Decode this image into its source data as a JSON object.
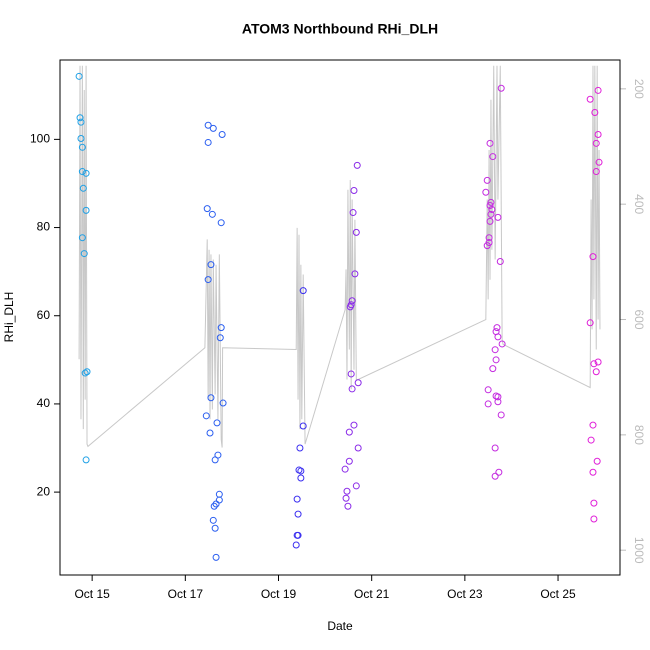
{
  "chart_data": {
    "type": "scatter",
    "title": "ATOM3 Northbound RHi_DLH",
    "x_label": "Date",
    "y_label": "RHi_DLH",
    "xlim": [
      14.31,
      26.33
    ],
    "xticks": [
      {
        "value": 15,
        "label": "Oct 15"
      },
      {
        "value": 17,
        "label": "Oct 17"
      },
      {
        "value": 19,
        "label": "Oct 19"
      },
      {
        "value": 21,
        "label": "Oct 21"
      },
      {
        "value": 23,
        "label": "Oct 23"
      },
      {
        "value": 25,
        "label": "Oct 25"
      }
    ],
    "ylim": [
      1.2,
      118
    ],
    "yticks": [
      20,
      40,
      60,
      80,
      100
    ],
    "y2lim": [
      1043,
      150
    ],
    "y2ticks": [
      200,
      400,
      600,
      800,
      1000
    ],
    "grid": false,
    "series": [
      {
        "color": "#1ea0e6",
        "x": [
          14.72,
          14.74,
          14.76,
          14.76,
          14.79,
          14.79,
          14.87,
          14.81,
          14.87,
          14.79,
          14.83,
          14.85,
          14.89,
          14.87
        ],
        "values": [
          114.3,
          104.9,
          103.9,
          100.2,
          98.2,
          92.7,
          92.3,
          88.9,
          83.9,
          77.7,
          74.1,
          47.0,
          47.3,
          27.3
        ]
      },
      {
        "color": "#2a5ef0",
        "x": [
          17.49,
          17.6,
          17.79,
          17.49,
          17.47,
          17.58,
          17.77,
          17.55,
          17.49,
          17.77,
          17.75,
          17.55,
          17.81,
          17.45,
          17.68,
          17.53,
          17.64,
          17.7,
          17.73,
          17.73,
          17.66,
          17.62,
          17.6,
          17.64,
          17.66
        ],
        "values": [
          103.2,
          102.5,
          101.1,
          99.3,
          84.3,
          83.0,
          81.1,
          71.6,
          68.2,
          57.3,
          55.0,
          41.4,
          40.2,
          37.3,
          35.7,
          33.4,
          27.3,
          28.4,
          19.5,
          18.2,
          17.3,
          16.8,
          13.6,
          11.8,
          5.2
        ]
      },
      {
        "color": "#3a2ef0",
        "x": [
          19.53,
          19.46,
          19.53,
          19.44,
          19.48,
          19.48,
          19.4,
          19.42,
          19.42,
          19.4,
          19.38
        ],
        "values": [
          65.7,
          30.0,
          35.0,
          25.0,
          24.8,
          23.2,
          18.4,
          15.0,
          10.2,
          10.2,
          8.0
        ]
      },
      {
        "color": "#8a2ae8",
        "x": [
          20.69,
          20.62,
          20.6,
          20.67,
          20.64,
          20.58,
          20.56,
          20.54,
          20.56,
          20.71,
          20.58,
          20.62,
          20.71,
          20.52,
          20.52,
          20.43,
          20.67,
          20.47,
          20.45,
          20.49
        ],
        "values": [
          94.1,
          88.4,
          83.4,
          78.9,
          69.5,
          63.4,
          62.5,
          62.0,
          46.8,
          44.8,
          43.4,
          35.2,
          30.0,
          33.6,
          27.0,
          25.2,
          21.4,
          20.2,
          18.6,
          16.8
        ]
      },
      {
        "color": "#c42ae0",
        "x": [
          23.78,
          23.54,
          23.6,
          23.48,
          23.45,
          23.56,
          23.54,
          23.58,
          23.56,
          23.71,
          23.54,
          23.52,
          23.52,
          23.48,
          23.76,
          23.69,
          23.67,
          23.71,
          23.8,
          23.65,
          23.67,
          23.6,
          23.5,
          23.67,
          23.71,
          23.71,
          23.5,
          23.78,
          23.65,
          23.73,
          23.65
        ],
        "values": [
          111.6,
          99.1,
          96.1,
          90.7,
          88.0,
          85.7,
          85.0,
          84.1,
          83.0,
          82.3,
          81.4,
          77.7,
          76.6,
          75.9,
          72.3,
          57.3,
          56.4,
          55.2,
          53.6,
          52.3,
          50.0,
          48.0,
          43.2,
          41.8,
          41.6,
          40.5,
          40.0,
          37.5,
          30.0,
          24.5,
          23.6
        ]
      },
      {
        "color": "#e01ed8",
        "x": [
          25.69,
          25.86,
          25.79,
          25.86,
          25.82,
          25.88,
          25.82,
          25.75,
          25.69,
          25.86,
          25.77,
          25.82,
          25.75,
          25.71,
          25.84,
          25.75,
          25.77,
          25.77
        ],
        "values": [
          109.1,
          111.1,
          106.1,
          101.1,
          99.1,
          94.8,
          92.7,
          73.4,
          58.4,
          49.5,
          49.1,
          47.3,
          35.2,
          31.8,
          27.0,
          24.5,
          17.5,
          13.9
        ]
      },
      {
        "type": "line",
        "axis": "y2",
        "color": "#c8c8c8",
        "x": [
          14.72,
          14.74,
          14.76,
          14.79,
          14.81,
          14.83,
          14.85,
          14.87,
          14.89,
          14.91,
          17.42,
          17.47,
          17.49,
          17.51,
          17.53,
          17.55,
          17.58,
          17.6,
          17.64,
          17.66,
          17.7,
          17.73,
          17.77,
          17.79,
          17.8,
          19.38,
          19.4,
          19.42,
          19.44,
          19.46,
          19.48,
          19.5,
          19.53,
          19.57,
          20.43,
          20.45,
          20.47,
          20.49,
          20.52,
          20.54,
          20.56,
          20.58,
          20.62,
          20.64,
          20.67,
          20.71,
          23.45,
          23.48,
          23.5,
          23.52,
          23.54,
          23.56,
          23.58,
          23.62,
          23.65,
          23.69,
          23.71,
          23.76,
          23.8,
          23.82,
          25.69,
          25.71,
          25.73,
          25.75,
          25.77,
          25.79,
          25.82,
          25.84,
          25.86,
          25.88,
          25.9
        ],
        "values": [
          669,
          160,
          773,
          160,
          790,
          202,
          739,
          160,
          816,
          820,
          649,
          461,
          739,
          479,
          773,
          487,
          756,
          496,
          730,
          505,
          773,
          487,
          808,
          822,
          649,
          652,
          441,
          739,
          453,
          790,
          505,
          773,
          522,
          816,
          583,
          513,
          704,
          375,
          652,
          358,
          721,
          392,
          687,
          427,
          704,
          704,
          600,
          392,
          565,
          306,
          531,
          219,
          479,
          160,
          496,
          160,
          392,
          160,
          635,
          643,
          718,
          392,
          617,
          160,
          565,
          160,
          652,
          160,
          600,
          306,
          617
        ]
      }
    ]
  }
}
